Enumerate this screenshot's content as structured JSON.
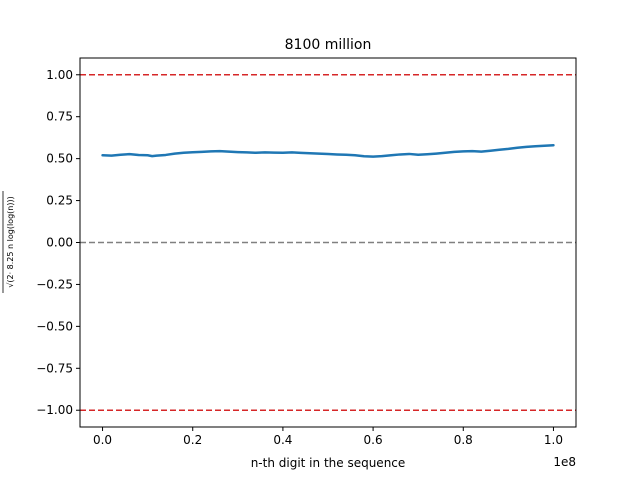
{
  "chart_data": {
    "type": "line",
    "title": "8100 million",
    "xlabel": "n-th digit in the sequence",
    "ylabel": "√(2· 8.25 n log(log(n)))",
    "x_offset_label": "1e8",
    "xlim": [
      -0.05,
      1.05
    ],
    "ylim": [
      -1.1,
      1.1
    ],
    "x_ticks": [
      0.0,
      0.2,
      0.4,
      0.6,
      0.8,
      1.0
    ],
    "x_tick_labels": [
      "0.0",
      "0.2",
      "0.4",
      "0.6",
      "0.8",
      "1.0"
    ],
    "y_ticks": [
      -1.0,
      -0.75,
      -0.5,
      -0.25,
      0.0,
      0.25,
      0.5,
      0.75,
      1.0
    ],
    "y_tick_labels": [
      "−1.00",
      "−0.75",
      "−0.50",
      "−0.25",
      "0.00",
      "0.25",
      "0.50",
      "0.75",
      "1.00"
    ],
    "reference_lines": [
      {
        "y": 1.0,
        "color": "#d62728",
        "style": "dashed"
      },
      {
        "y": 0.0,
        "color": "#808080",
        "style": "dashed"
      },
      {
        "y": -1.0,
        "color": "#d62728",
        "style": "dashed"
      }
    ],
    "series": [
      {
        "color": "#1f77b4",
        "x": [
          0.0,
          0.02,
          0.04,
          0.06,
          0.08,
          0.1,
          0.11,
          0.12,
          0.14,
          0.16,
          0.18,
          0.2,
          0.22,
          0.24,
          0.26,
          0.28,
          0.3,
          0.32,
          0.34,
          0.36,
          0.38,
          0.4,
          0.42,
          0.44,
          0.46,
          0.48,
          0.5,
          0.52,
          0.54,
          0.56,
          0.58,
          0.6,
          0.62,
          0.64,
          0.66,
          0.68,
          0.7,
          0.72,
          0.74,
          0.76,
          0.78,
          0.8,
          0.82,
          0.84,
          0.86,
          0.88,
          0.9,
          0.92,
          0.94,
          0.96,
          0.98,
          1.0
        ],
        "y": [
          0.52,
          0.518,
          0.523,
          0.527,
          0.522,
          0.52,
          0.515,
          0.518,
          0.522,
          0.53,
          0.535,
          0.538,
          0.54,
          0.543,
          0.545,
          0.542,
          0.539,
          0.537,
          0.535,
          0.537,
          0.536,
          0.535,
          0.537,
          0.534,
          0.532,
          0.53,
          0.528,
          0.525,
          0.523,
          0.52,
          0.514,
          0.512,
          0.515,
          0.52,
          0.525,
          0.528,
          0.523,
          0.526,
          0.53,
          0.535,
          0.54,
          0.543,
          0.545,
          0.542,
          0.547,
          0.553,
          0.558,
          0.565,
          0.57,
          0.574,
          0.577,
          0.58
        ]
      }
    ],
    "grid": false
  }
}
